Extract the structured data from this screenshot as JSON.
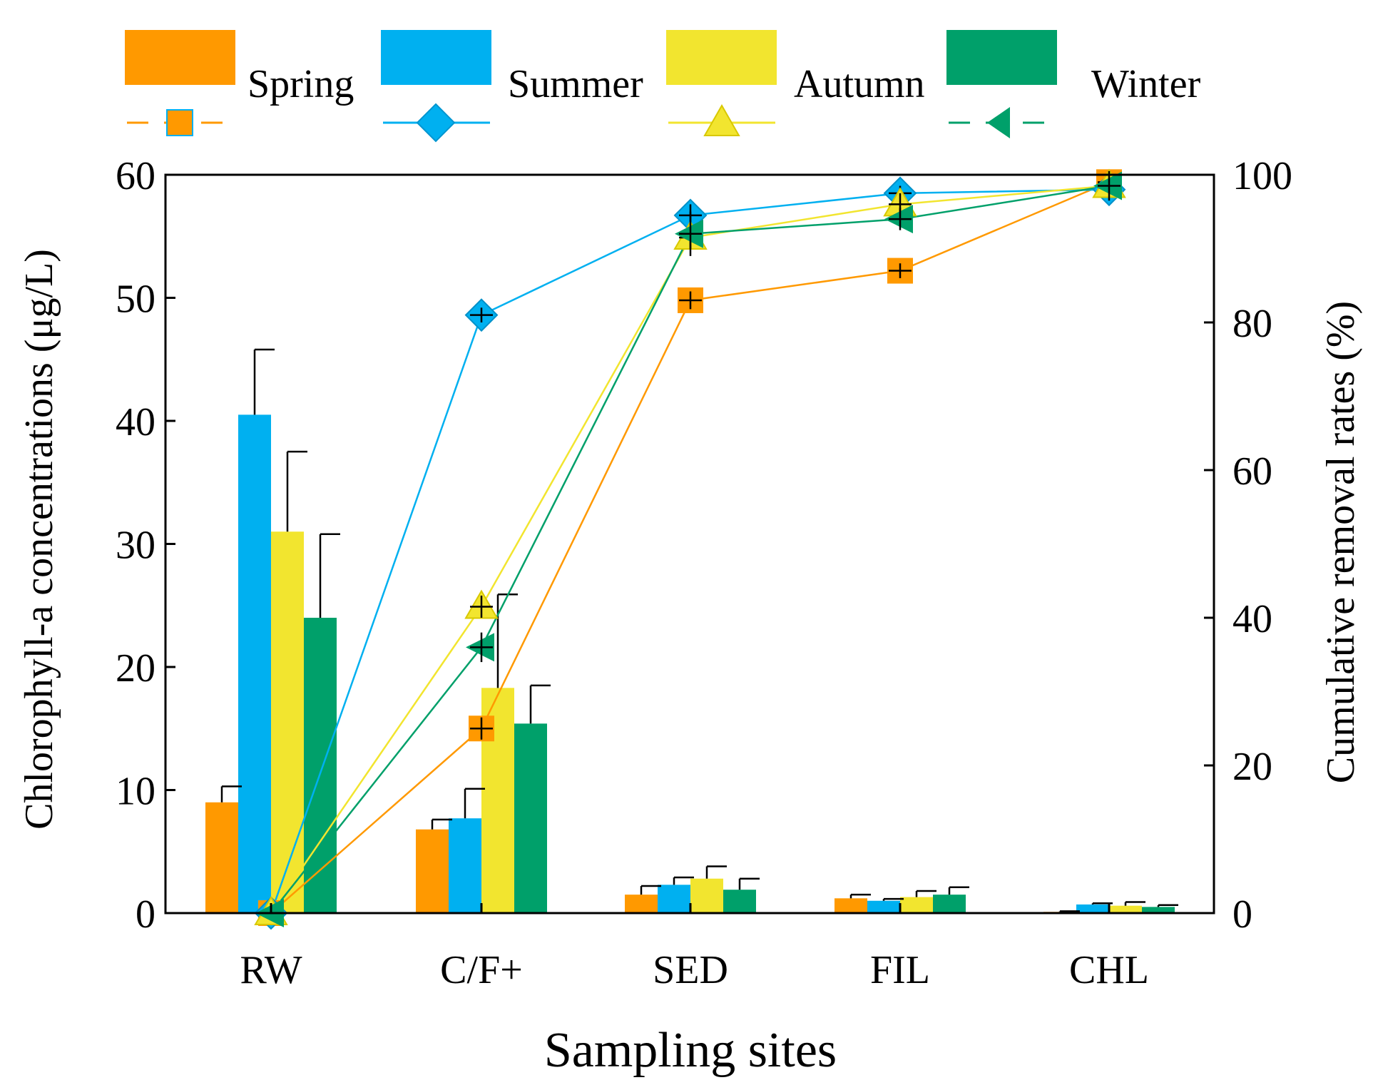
{
  "chart_data": {
    "type": "bar+line",
    "categories": [
      "RW",
      "C/F+",
      "SED",
      "FIL",
      "CHL"
    ],
    "xlabel": "Sampling sites",
    "ylabel_left": "Chlorophyll-a concentrations (μg/L)",
    "ylabel_right": "Cumulative removal rates (%)",
    "ylim_left": [
      0,
      60
    ],
    "ylim_right": [
      0,
      100
    ],
    "yticks_left": [
      "0",
      "10",
      "20",
      "30",
      "40",
      "50",
      "60"
    ],
    "yticks_right": [
      "0",
      "20",
      "40",
      "60",
      "80",
      "100"
    ],
    "legend_position": "top",
    "series": [
      {
        "name": "Spring",
        "color": "#FF9900",
        "marker": "square",
        "bar_values": [
          9.0,
          6.8,
          1.5,
          1.2,
          0.1
        ],
        "bar_errors": [
          1.3,
          0.8,
          0.7,
          0.3,
          0.05
        ],
        "line_values": [
          0,
          25,
          83,
          87,
          99
        ],
        "line_errors": [
          0,
          1.5,
          1.2,
          1.0,
          0.5
        ]
      },
      {
        "name": "Summer",
        "color": "#00B0F0",
        "marker": "diamond",
        "bar_values": [
          40.5,
          7.7,
          2.3,
          1.0,
          0.7
        ],
        "bar_errors": [
          5.3,
          2.4,
          0.6,
          0.15,
          0.1
        ],
        "line_values": [
          0,
          81,
          94.5,
          97.5,
          98
        ],
        "line_errors": [
          0,
          1.0,
          1.5,
          1.0,
          0.5
        ]
      },
      {
        "name": "Autumn",
        "color": "#F2E52F",
        "marker": "triangle",
        "bar_values": [
          31.0,
          18.3,
          2.8,
          1.3,
          0.6
        ],
        "bar_errors": [
          6.5,
          7.6,
          1.0,
          0.5,
          0.3
        ],
        "line_values": [
          0,
          41.5,
          91.5,
          96,
          98.5
        ],
        "line_errors": [
          0,
          1.5,
          1.5,
          1.5,
          0.8
        ]
      },
      {
        "name": "Winter",
        "color": "#00A06A",
        "marker": "triangle-left",
        "bar_values": [
          24.0,
          15.4,
          1.9,
          1.5,
          0.5
        ],
        "bar_errors": [
          6.8,
          3.1,
          0.9,
          0.6,
          0.15
        ],
        "line_values": [
          0,
          36,
          92,
          94,
          98.5
        ],
        "line_errors": [
          0,
          2.0,
          3.0,
          1.5,
          2.0
        ]
      }
    ]
  }
}
